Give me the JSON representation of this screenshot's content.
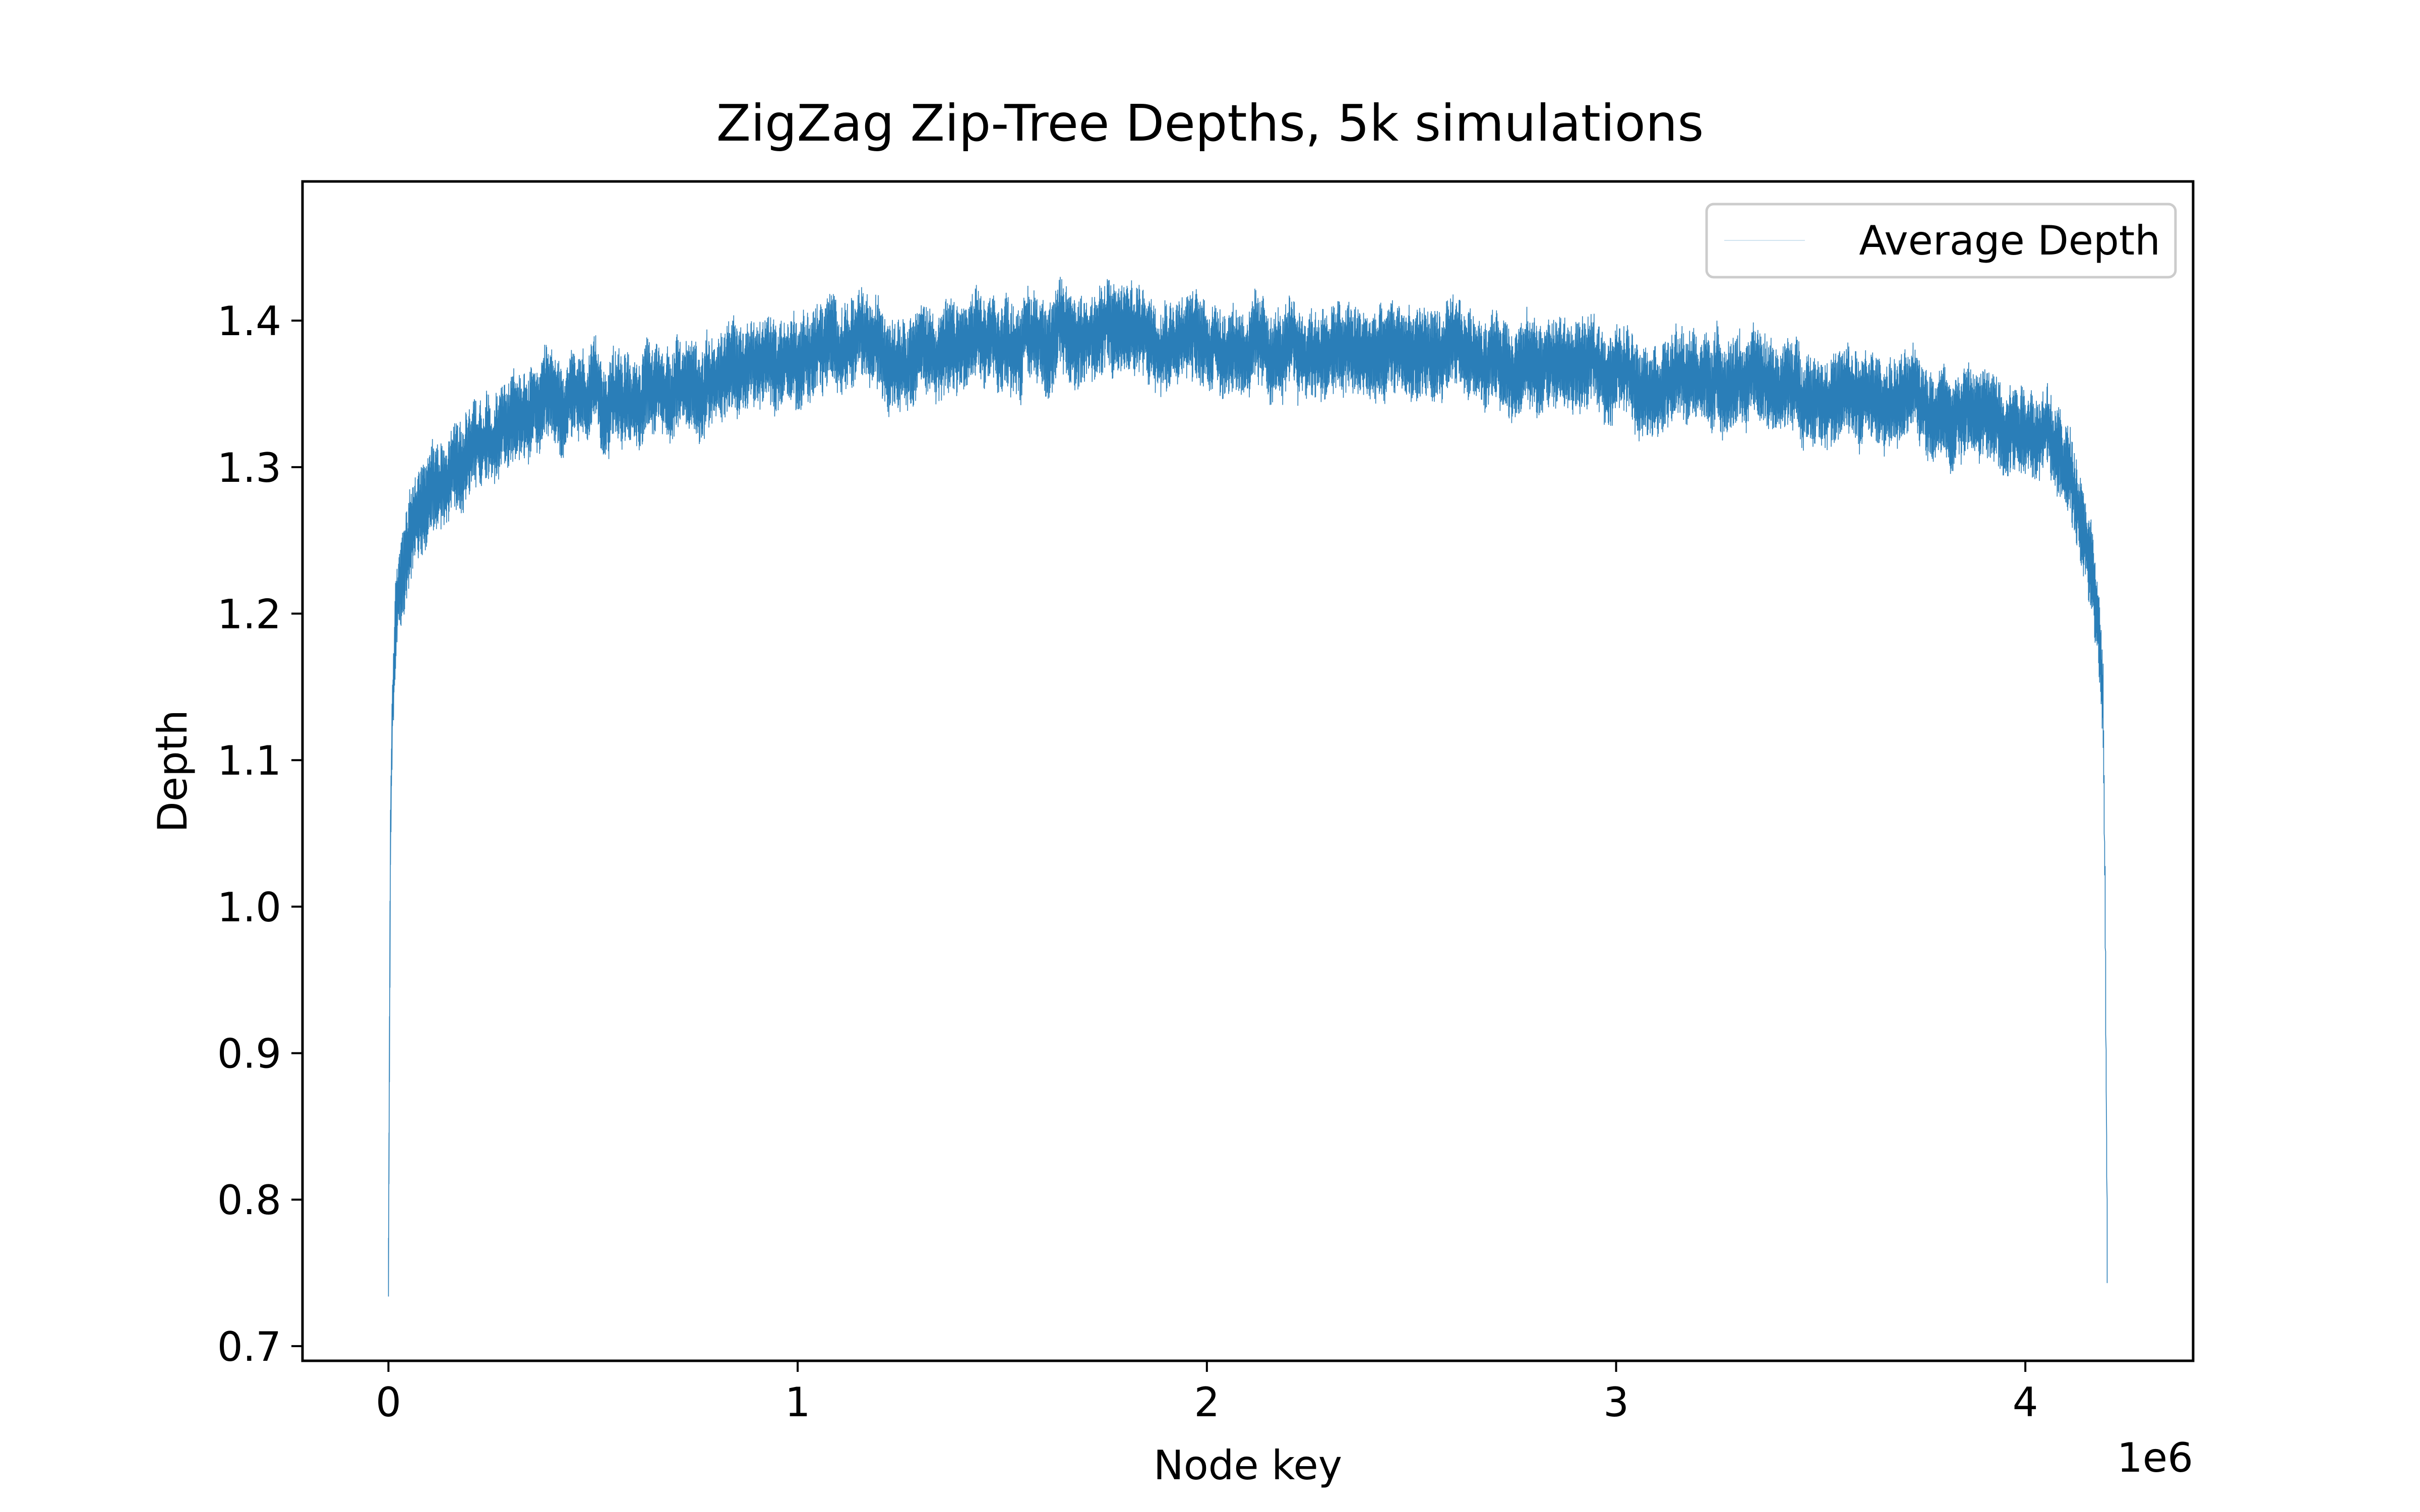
{
  "chart_data": {
    "type": "line",
    "title": "ZigZag Zip-Tree Depths, 5k simulations",
    "xlabel": "Node key",
    "ylabel": "Depth",
    "x_offset_label": "1e6",
    "xlim": [
      -210000,
      4410000
    ],
    "ylim": [
      0.69,
      1.495
    ],
    "x_ticks": [
      0,
      1,
      2,
      3,
      4
    ],
    "x_tick_values": [
      0,
      1000000,
      2000000,
      3000000,
      4000000
    ],
    "y_ticks": [
      "0.7",
      "0.8",
      "0.9",
      "1.0",
      "1.1",
      "1.2",
      "1.3",
      "1.4"
    ],
    "y_tick_values": [
      0.7,
      0.8,
      0.9,
      1.0,
      1.1,
      1.2,
      1.3,
      1.4
    ],
    "grid": false,
    "legend_position": "top-right",
    "series": [
      {
        "name": "Average Depth",
        "color": "#1f77b4",
        "x": [
          0,
          5000,
          10000,
          20000,
          40000,
          60000,
          100000,
          150000,
          200000,
          300000,
          400000,
          500000,
          600000,
          700000,
          800000,
          900000,
          1000000,
          1100000,
          1200000,
          1300000,
          1400000,
          1500000,
          1600000,
          1700000,
          1800000,
          1900000,
          2000000,
          2100000,
          2200000,
          2300000,
          2400000,
          2500000,
          2600000,
          2700000,
          2800000,
          2900000,
          3000000,
          3100000,
          3200000,
          3300000,
          3400000,
          3500000,
          3600000,
          3700000,
          3800000,
          3900000,
          4000000,
          4050000,
          4100000,
          4130000,
          4160000,
          4180000,
          4190000,
          4195000,
          4200000
        ],
        "y": [
          0.75,
          1.05,
          1.14,
          1.2,
          1.24,
          1.26,
          1.285,
          1.3,
          1.315,
          1.33,
          1.34,
          1.345,
          1.35,
          1.355,
          1.36,
          1.37,
          1.375,
          1.385,
          1.38,
          1.38,
          1.38,
          1.385,
          1.39,
          1.39,
          1.395,
          1.39,
          1.385,
          1.38,
          1.375,
          1.38,
          1.375,
          1.38,
          1.375,
          1.375,
          1.37,
          1.37,
          1.365,
          1.36,
          1.36,
          1.36,
          1.355,
          1.35,
          1.345,
          1.345,
          1.34,
          1.335,
          1.33,
          1.32,
          1.3,
          1.28,
          1.24,
          1.19,
          1.13,
          1.0,
          0.77
        ],
        "noise_amplitude": 0.025
      }
    ]
  }
}
